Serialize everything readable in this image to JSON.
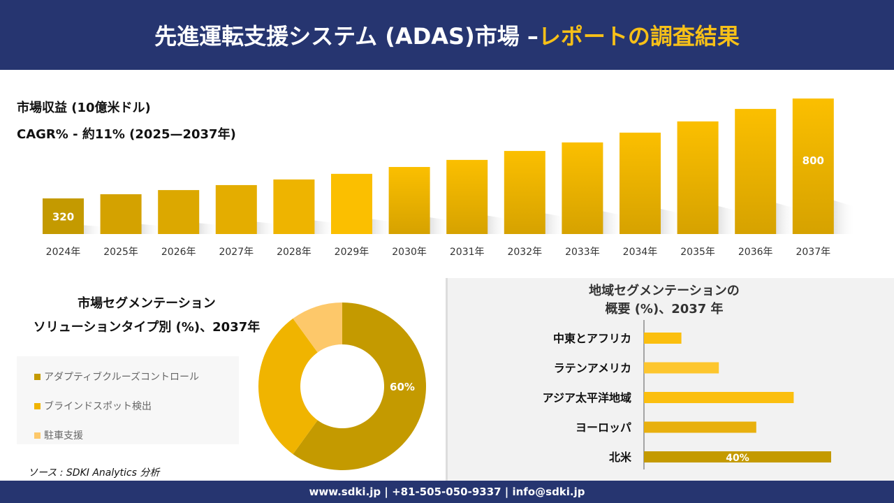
{
  "header": {
    "title_main": "先進運転支援システム (ADAS)市場 –",
    "title_accent": "レポートの調査結果"
  },
  "colors": {
    "navy": "#263570",
    "accent": "#f7c018",
    "dark_gold": "#c49a00",
    "gold": "#f0b400",
    "light_gold": "#fdc86a"
  },
  "chart_data": [
    {
      "type": "bar",
      "title": "市場収益 (10億米ドル)",
      "subtitle": "CAGR% - 約11% (2025—2037年)",
      "categories": [
        "2024年",
        "2025年",
        "2026年",
        "2027年",
        "2028年",
        "2029年",
        "2030年",
        "2031年",
        "2032年",
        "2033年",
        "2034年",
        "2035年",
        "2036年",
        "2037年"
      ],
      "values": [
        320,
        340,
        360,
        384,
        411,
        438,
        471,
        505,
        548,
        589,
        636,
        690,
        750,
        800
      ],
      "data_labels": {
        "0": "320",
        "13": "800"
      }
    },
    {
      "type": "pie",
      "donut": true,
      "title_line1": "市場セグメンテーション",
      "title_line2": "ソリューションタイプ別 (%)、2037年",
      "labels": [
        "アダプティブクルーズコントロール",
        "ブラインドスポット検出",
        "駐車支援"
      ],
      "values": [
        60,
        30,
        10
      ],
      "colors": [
        "#c49a00",
        "#f0b400",
        "#fdc86a"
      ],
      "data_label": "60%"
    },
    {
      "type": "bar",
      "orientation": "horizontal",
      "title_line1": "地域セグメンテーションの",
      "title_line2": "概要 (%)、2037 年",
      "categories": [
        "中東とアフリカ",
        "ラテンアメリカ",
        "アジア太平洋地域",
        "ヨーロッパ",
        "北米"
      ],
      "values": [
        8,
        16,
        32,
        24,
        40
      ],
      "colors": [
        "#fbbf0f",
        "#fdc62e",
        "#fbbf0f",
        "#e8b00e",
        "#c49a00"
      ],
      "data_label": "40%"
    }
  ],
  "source": "ソース : SDKI Analytics 分析",
  "footer": "www.sdki.jp | +81-505-050-9337 | info@sdki.jp"
}
